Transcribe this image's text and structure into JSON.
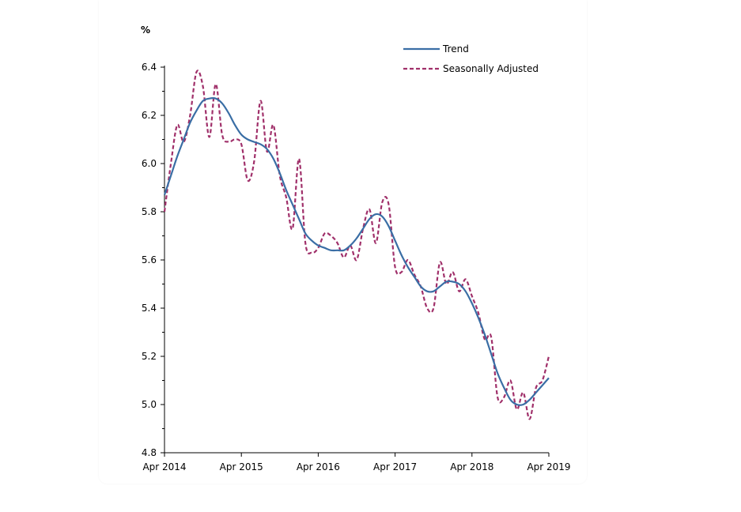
{
  "chart_data": {
    "type": "line",
    "title": "",
    "ylabel": "%",
    "xlabel": "",
    "ylim": [
      4.8,
      6.4
    ],
    "yticks": [
      "4.8",
      "5.0",
      "5.2",
      "5.4",
      "5.6",
      "5.8",
      "6.0",
      "6.2",
      "6.4"
    ],
    "xticks": [
      "Apr 2014",
      "Apr 2015",
      "Apr 2016",
      "Apr 2017",
      "Apr 2018",
      "Apr 2019"
    ],
    "x_start": "Apr 2014",
    "x_end": "Apr 2019",
    "x_frequency": "monthly",
    "grid": false,
    "legend_position": "top-right",
    "series": [
      {
        "name": "Trend",
        "color": "#3a6ea5",
        "style": "solid",
        "values": [
          5.87,
          5.95,
          6.03,
          6.1,
          6.17,
          6.22,
          6.26,
          6.27,
          6.27,
          6.25,
          6.21,
          6.16,
          6.12,
          6.1,
          6.09,
          6.08,
          6.06,
          6.02,
          5.96,
          5.89,
          5.83,
          5.77,
          5.71,
          5.68,
          5.66,
          5.65,
          5.64,
          5.64,
          5.64,
          5.66,
          5.69,
          5.73,
          5.77,
          5.79,
          5.78,
          5.74,
          5.68,
          5.62,
          5.57,
          5.53,
          5.49,
          5.47,
          5.47,
          5.49,
          5.51,
          5.51,
          5.5,
          5.47,
          5.42,
          5.36,
          5.29,
          5.21,
          5.13,
          5.07,
          5.02,
          5.0,
          5.0,
          5.02,
          5.05,
          5.08,
          5.11
        ]
      },
      {
        "name": "Seasonally Adjusted",
        "color": "#a0306a",
        "style": "dashed",
        "values": [
          5.8,
          6.0,
          6.16,
          6.09,
          6.2,
          6.38,
          6.32,
          6.11,
          6.33,
          6.12,
          6.09,
          6.1,
          6.08,
          5.93,
          6.01,
          6.26,
          6.05,
          6.16,
          5.95,
          5.86,
          5.73,
          6.02,
          5.67,
          5.63,
          5.65,
          5.71,
          5.7,
          5.67,
          5.61,
          5.66,
          5.6,
          5.73,
          5.81,
          5.67,
          5.84,
          5.83,
          5.57,
          5.55,
          5.6,
          5.54,
          5.49,
          5.4,
          5.4,
          5.59,
          5.5,
          5.55,
          5.47,
          5.52,
          5.45,
          5.38,
          5.27,
          5.28,
          5.03,
          5.03,
          5.1,
          4.98,
          5.05,
          4.94,
          5.07,
          5.1,
          5.2
        ]
      }
    ]
  }
}
